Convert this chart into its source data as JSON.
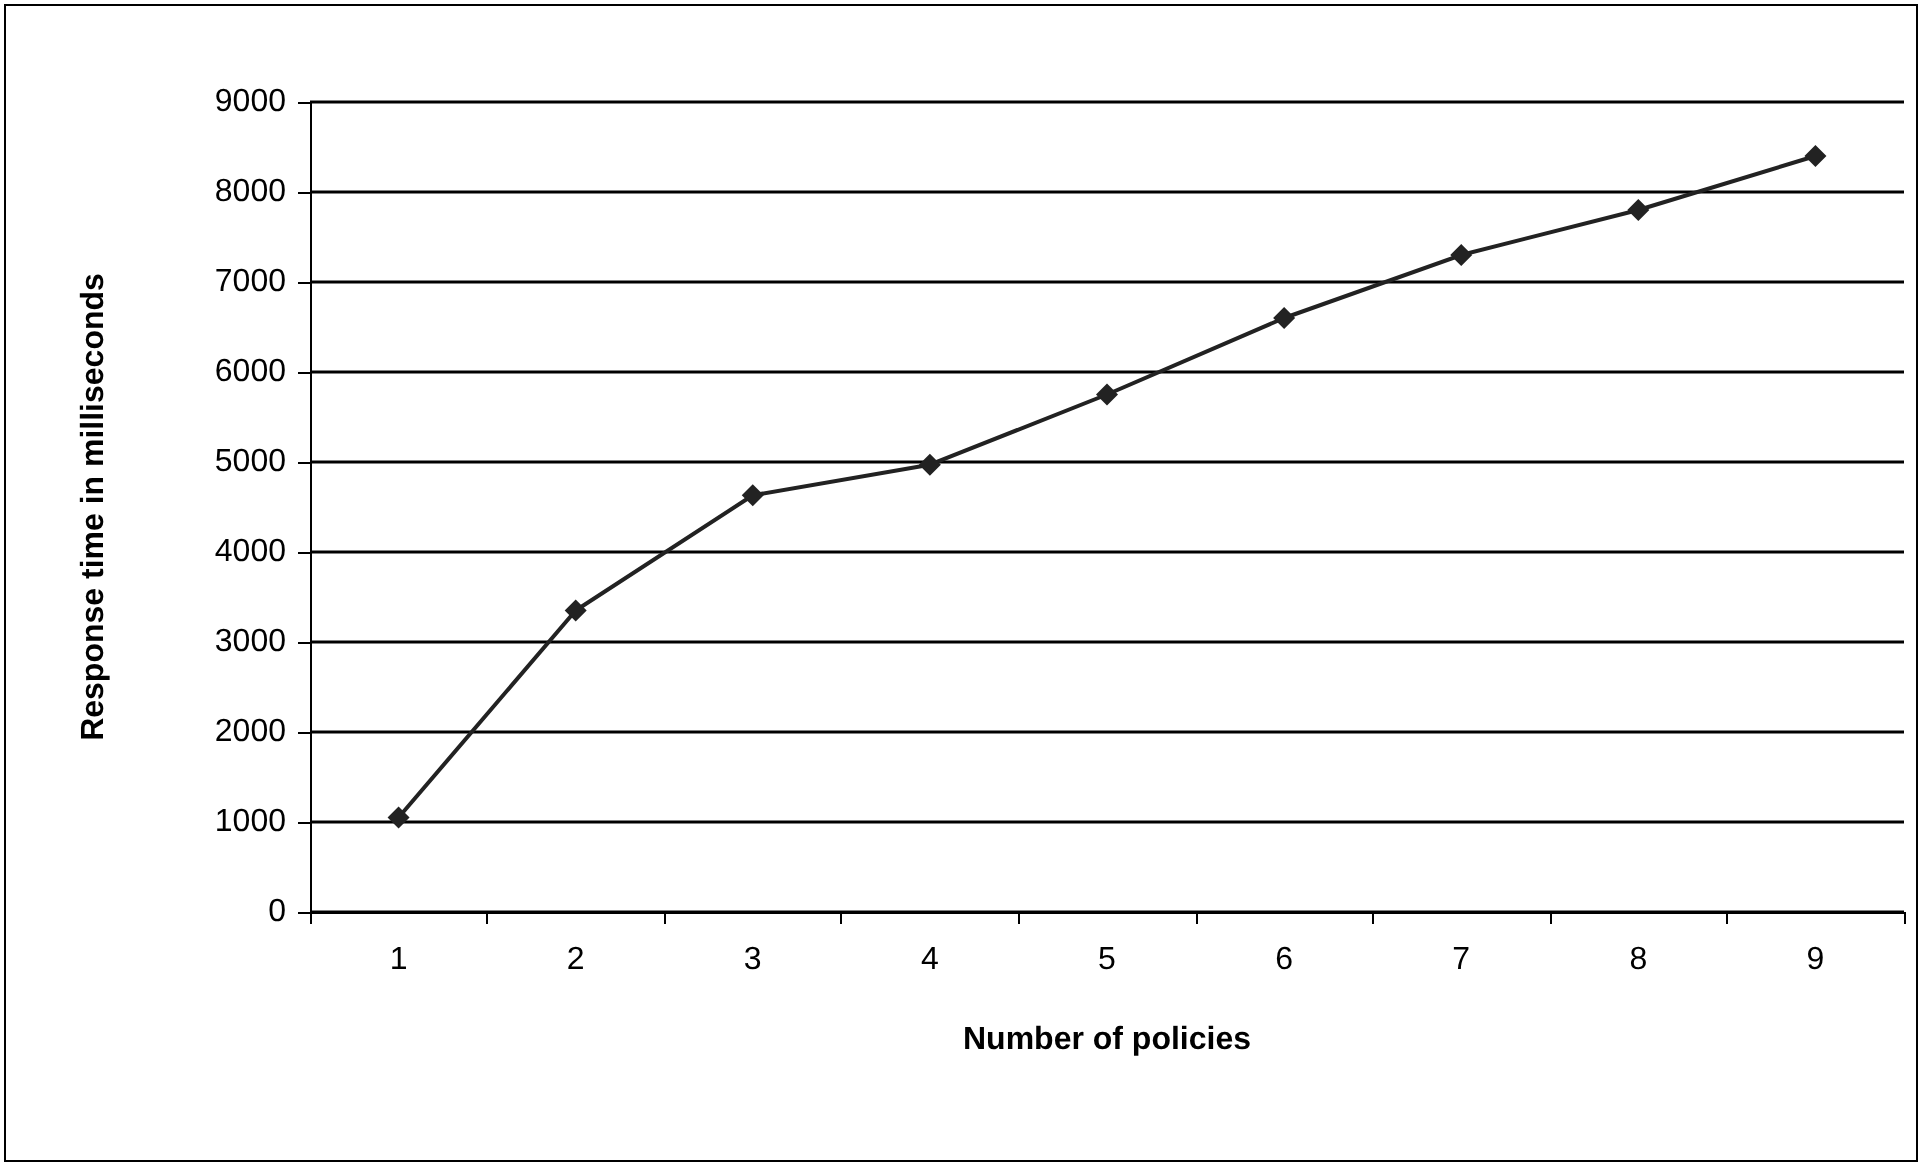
{
  "chart_data": {
    "type": "line",
    "xlabel": "Number of policies",
    "ylabel": "Response time in milliseconds",
    "categories": [
      "1",
      "2",
      "3",
      "4",
      "5",
      "6",
      "7",
      "8",
      "9"
    ],
    "series": [
      {
        "color": "#222222",
        "values": [
          1050,
          3350,
          4630,
          4970,
          5750,
          6600,
          7300,
          7800,
          8400
        ]
      }
    ],
    "ylim": [
      0,
      9000
    ],
    "yticks": [
      0,
      1000,
      2000,
      3000,
      4000,
      5000,
      6000,
      7000,
      8000,
      9000
    ],
    "grid": "y",
    "marker": "diamond",
    "line_style": "solid"
  }
}
